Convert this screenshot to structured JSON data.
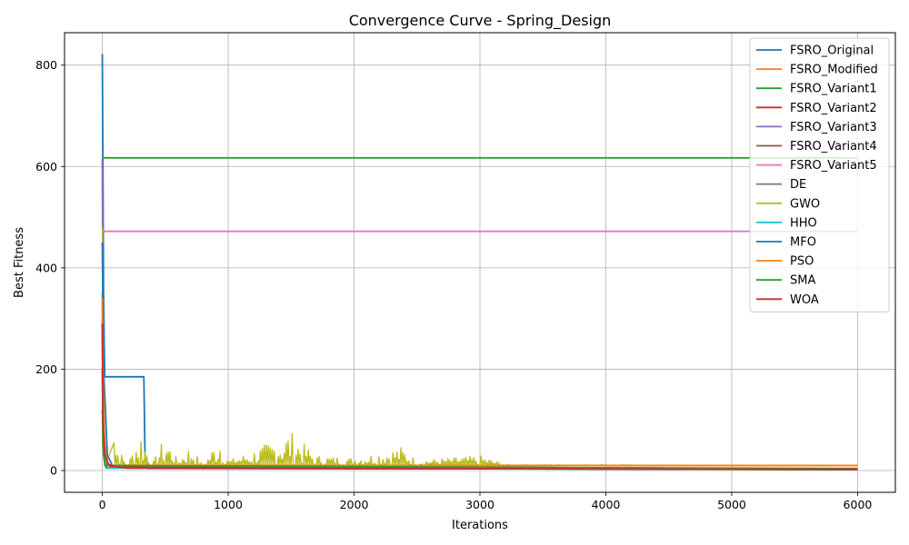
{
  "chart_data": {
    "type": "line",
    "title": "Convergence Curve - Spring_Design",
    "xlabel": "Iterations",
    "ylabel": "Best Fitness",
    "xlim": [
      -300,
      6300
    ],
    "ylim": [
      -43,
      864
    ],
    "xticks": [
      0,
      1000,
      2000,
      3000,
      4000,
      5000,
      6000
    ],
    "yticks": [
      0,
      200,
      400,
      600,
      800
    ],
    "grid": true,
    "legend_position": "top-right",
    "series": [
      {
        "name": "FSRO_Original",
        "color": "#1f77b4",
        "points": [
          [
            0,
            822
          ],
          [
            5,
            600
          ],
          [
            10,
            350
          ],
          [
            15,
            250
          ],
          [
            20,
            185
          ],
          [
            330,
            185
          ],
          [
            340,
            20
          ],
          [
            360,
            4
          ],
          [
            6000,
            3
          ]
        ]
      },
      {
        "name": "FSRO_Modified",
        "color": "#ff7f0e",
        "points": [
          [
            0,
            350
          ],
          [
            5,
            150
          ],
          [
            10,
            60
          ],
          [
            20,
            20
          ],
          [
            40,
            10
          ],
          [
            6000,
            10
          ]
        ]
      },
      {
        "name": "FSRO_Variant1",
        "color": "#2ca02c",
        "points": [
          [
            0,
            617
          ],
          [
            6000,
            617
          ]
        ]
      },
      {
        "name": "FSRO_Variant2",
        "color": "#d62728",
        "points": [
          [
            0,
            295
          ],
          [
            5,
            120
          ],
          [
            15,
            40
          ],
          [
            30,
            15
          ],
          [
            60,
            8
          ],
          [
            6000,
            4
          ]
        ]
      },
      {
        "name": "FSRO_Variant3",
        "color": "#9467bd",
        "points": [
          [
            0,
            615
          ],
          [
            3,
            450
          ],
          [
            6,
            250
          ],
          [
            10,
            120
          ],
          [
            20,
            40
          ],
          [
            40,
            10
          ],
          [
            6000,
            2
          ]
        ]
      },
      {
        "name": "FSRO_Variant4",
        "color": "#8c564b",
        "points": [
          [
            0,
            120
          ],
          [
            10,
            30
          ],
          [
            30,
            5
          ],
          [
            6000,
            2
          ]
        ]
      },
      {
        "name": "FSRO_Variant5",
        "color": "#e377c2",
        "points": [
          [
            0,
            472
          ],
          [
            6000,
            472
          ]
        ]
      },
      {
        "name": "DE",
        "color": "#7f7f7f",
        "points": [
          [
            0,
            200
          ],
          [
            10,
            40
          ],
          [
            30,
            10
          ],
          [
            6000,
            2
          ]
        ]
      },
      {
        "name": "GWO",
        "color": "#bcbd22",
        "points": [
          [
            0,
            480
          ],
          [
            10,
            100
          ],
          [
            20,
            55
          ],
          [
            40,
            20
          ],
          [
            100,
            60
          ],
          [
            200,
            10
          ],
          [
            300,
            85
          ],
          [
            400,
            15
          ],
          [
            500,
            70
          ],
          [
            600,
            20
          ],
          [
            700,
            50
          ],
          [
            800,
            10
          ],
          [
            950,
            78
          ],
          [
            1000,
            20
          ],
          [
            1200,
            40
          ],
          [
            1500,
            78
          ],
          [
            1700,
            30
          ],
          [
            2000,
            25
          ],
          [
            2380,
            48
          ],
          [
            2500,
            20
          ],
          [
            3000,
            30
          ],
          [
            3200,
            12
          ],
          [
            4000,
            12
          ],
          [
            4500,
            10
          ],
          [
            6000,
            10
          ]
        ]
      },
      {
        "name": "HHO",
        "color": "#17becf",
        "points": [
          [
            0,
            300
          ],
          [
            5,
            100
          ],
          [
            15,
            20
          ],
          [
            40,
            5
          ],
          [
            6000,
            2
          ]
        ]
      },
      {
        "name": "MFO",
        "color": "#1f77b4",
        "points": [
          [
            0,
            450
          ],
          [
            10,
            200
          ],
          [
            25,
            120
          ],
          [
            40,
            30
          ],
          [
            80,
            10
          ],
          [
            6000,
            3
          ]
        ]
      },
      {
        "name": "PSO",
        "color": "#ff7f0e",
        "points": [
          [
            0,
            340
          ],
          [
            5,
            200
          ],
          [
            15,
            70
          ],
          [
            30,
            20
          ],
          [
            60,
            10
          ],
          [
            6000,
            10
          ]
        ]
      },
      {
        "name": "SMA",
        "color": "#2ca02c",
        "points": [
          [
            0,
            200
          ],
          [
            5,
            50
          ],
          [
            20,
            10
          ],
          [
            6000,
            3
          ]
        ]
      },
      {
        "name": "WOA",
        "color": "#d62728",
        "points": [
          [
            0,
            290
          ],
          [
            5,
            100
          ],
          [
            20,
            30
          ],
          [
            50,
            12
          ],
          [
            100,
            8
          ],
          [
            200,
            5
          ],
          [
            6000,
            2
          ]
        ]
      }
    ]
  }
}
